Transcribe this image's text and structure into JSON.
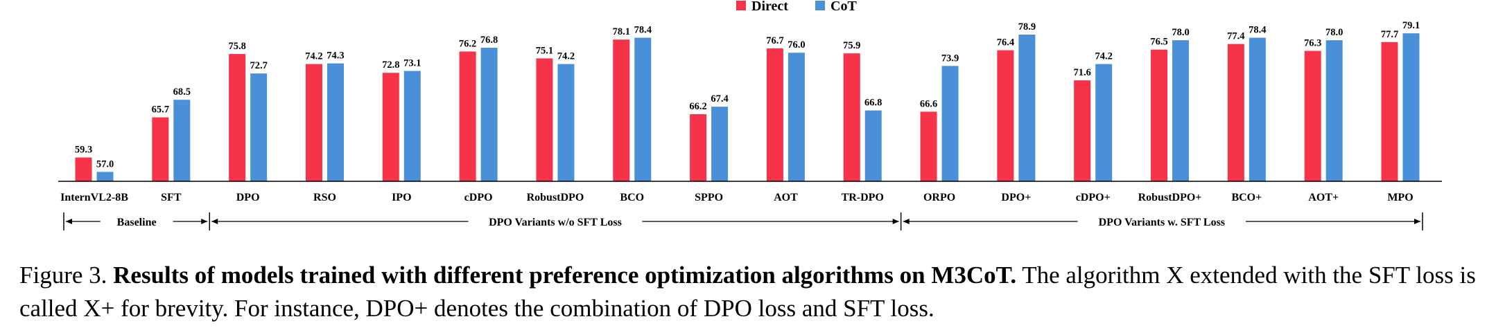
{
  "chart_data": {
    "type": "bar",
    "categories": [
      "InternVL2-8B",
      "SFT",
      "DPO",
      "RSO",
      "IPO",
      "cDPO",
      "RobustDPO",
      "BCO",
      "SPPO",
      "AOT",
      "TR-DPO",
      "ORPO",
      "DPO+",
      "cDPO+",
      "RobustDPO+",
      "BCO+",
      "AOT+",
      "MPO"
    ],
    "series": [
      {
        "name": "Direct",
        "color": "#f7334a",
        "values": [
          59.3,
          65.7,
          75.8,
          74.2,
          72.8,
          76.2,
          75.1,
          78.1,
          66.2,
          76.7,
          75.9,
          66.6,
          76.4,
          71.6,
          76.5,
          77.4,
          76.3,
          77.7
        ]
      },
      {
        "name": "CoT",
        "color": "#4a90d9",
        "values": [
          57.0,
          68.5,
          72.7,
          74.3,
          73.1,
          76.8,
          74.2,
          78.4,
          67.4,
          76.0,
          66.8,
          73.9,
          78.9,
          74.2,
          78.0,
          78.4,
          78.0,
          79.1
        ]
      }
    ],
    "value_labels": {
      "Direct": [
        "59.3",
        "65.7",
        "75.8",
        "74.2",
        "72.8",
        "76.2",
        "75.1",
        "78.1",
        "66.2",
        "76.7",
        "75.9",
        "66.6",
        "76.4",
        "71.6",
        "76.5",
        "77.4",
        "76.3",
        "77.7"
      ],
      "CoT": [
        "57.0",
        "68.5",
        "72.7",
        "74.3",
        "73.1",
        "76.8",
        "74.2",
        "78.4",
        "67.4",
        "76.0",
        "66.8",
        "73.9",
        "78.9",
        "74.2",
        "78.0",
        "78.4",
        "78.0",
        "79.1"
      ]
    },
    "groups": [
      {
        "label": "Baseline",
        "from": "InternVL2-8B",
        "to": "SFT"
      },
      {
        "label": "DPO Variants w/o SFT Loss",
        "from": "DPO",
        "to": "TR-DPO"
      },
      {
        "label": "DPO Variants w. SFT Loss",
        "from": "ORPO",
        "to": "MPO"
      }
    ],
    "ylim": [
      55.5,
      80
    ],
    "y_axis_visible": false,
    "grid": false,
    "legend": "top-center"
  },
  "caption": {
    "prefix": "Figure 3.",
    "bold": "Results of models trained with different preference optimization algorithms on M3CoT.",
    "rest": "The algorithm X extended with the SFT loss is called X+ for brevity. For instance, DPO+ denotes the combination of DPO loss and SFT loss."
  }
}
